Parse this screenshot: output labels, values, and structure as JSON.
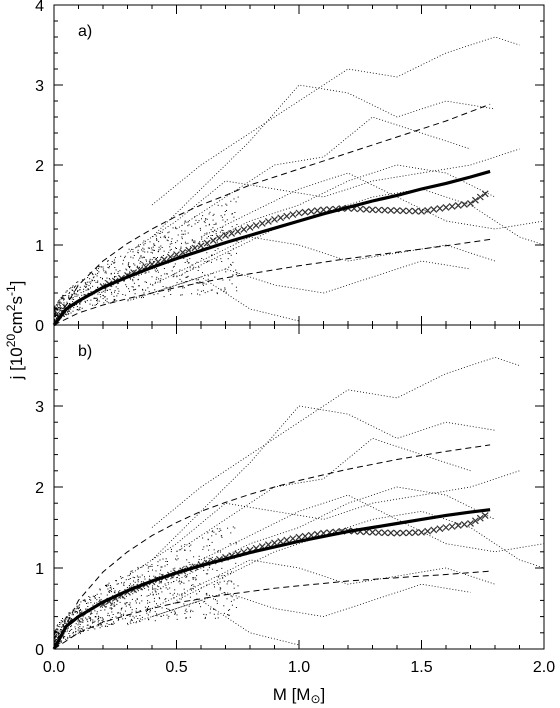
{
  "figure": {
    "ylabel": "j  [10",
    "ylabel_exp": "20",
    "ylabel_units": "cm",
    "ylabel_units_exp": "2",
    "ylabel_tail": "s",
    "ylabel_tail_exp": "-1",
    "ylabel_close": "]",
    "xlabel": "M  [M",
    "xlabel_symbol": "⊙",
    "xlabel_close": "]"
  },
  "chart_data": [
    {
      "type": "line",
      "panel_label": "a)",
      "xlim": [
        0,
        2.0
      ],
      "ylim": [
        0,
        4
      ],
      "xticks": [
        0.0,
        0.5,
        1.0,
        1.5,
        2.0
      ],
      "xtick_labels": [
        "0.0",
        "0.5",
        "1.0",
        "1.5",
        "2.0"
      ],
      "yticks": [
        0,
        1,
        2,
        3,
        4
      ],
      "ytick_labels": [
        "0",
        "1",
        "2",
        "3",
        "4"
      ],
      "show_xtick_labels": false,
      "fit_line": {
        "style": "solid-thick",
        "x": [
          0.0,
          0.05,
          0.1,
          0.2,
          0.3,
          0.4,
          0.5,
          0.6,
          0.7,
          0.8,
          0.9,
          1.0,
          1.1,
          1.2,
          1.3,
          1.4,
          1.5,
          1.6,
          1.7,
          1.78
        ],
        "y": [
          0.0,
          0.2,
          0.3,
          0.47,
          0.6,
          0.72,
          0.83,
          0.93,
          1.03,
          1.12,
          1.21,
          1.3,
          1.39,
          1.47,
          1.55,
          1.62,
          1.7,
          1.77,
          1.85,
          1.92
        ]
      },
      "upper_dashed": {
        "style": "dashed",
        "x": [
          0.0,
          0.1,
          0.2,
          0.3,
          0.4,
          0.5,
          0.6,
          0.7,
          0.8,
          0.9,
          1.0,
          1.2,
          1.4,
          1.6,
          1.78
        ],
        "y": [
          0.0,
          0.5,
          0.8,
          1.02,
          1.2,
          1.36,
          1.5,
          1.62,
          1.75,
          1.85,
          1.95,
          2.15,
          2.35,
          2.55,
          2.76
        ]
      },
      "lower_dashed": {
        "style": "dashed",
        "x": [
          0.0,
          0.1,
          0.2,
          0.3,
          0.4,
          0.5,
          0.6,
          0.7,
          0.8,
          0.9,
          1.0,
          1.2,
          1.4,
          1.6,
          1.78
        ],
        "y": [
          0.0,
          0.15,
          0.25,
          0.33,
          0.4,
          0.47,
          0.53,
          0.59,
          0.64,
          0.69,
          0.74,
          0.83,
          0.91,
          0.99,
          1.07
        ]
      },
      "binned_mean": {
        "style": "x-markers",
        "x": [
          0.2,
          0.3,
          0.4,
          0.5,
          0.6,
          0.7,
          0.8,
          0.9,
          1.0,
          1.1,
          1.2,
          1.3,
          1.4,
          1.5,
          1.6,
          1.7,
          1.78
        ],
        "y": [
          0.48,
          0.62,
          0.76,
          0.88,
          0.99,
          1.12,
          1.22,
          1.32,
          1.4,
          1.44,
          1.46,
          1.44,
          1.43,
          1.42,
          1.47,
          1.52,
          1.68
        ]
      },
      "tracks": [
        {
          "x": [
            0.4,
            0.6,
            0.8,
            1.0,
            1.2,
            1.4,
            1.6,
            1.8,
            1.9
          ],
          "y": [
            1.5,
            2.0,
            2.4,
            2.8,
            3.2,
            3.1,
            3.4,
            3.6,
            3.5
          ]
        },
        {
          "x": [
            0.4,
            0.6,
            0.8,
            1.0,
            1.2,
            1.4,
            1.6,
            1.8
          ],
          "y": [
            1.1,
            1.7,
            2.3,
            3.0,
            2.9,
            2.6,
            2.8,
            2.7
          ]
        },
        {
          "x": [
            0.5,
            0.7,
            0.9,
            1.1,
            1.3,
            1.5,
            1.7
          ],
          "y": [
            1.2,
            1.6,
            2.0,
            2.1,
            2.6,
            2.4,
            2.2
          ]
        },
        {
          "x": [
            0.3,
            0.5,
            0.7,
            0.9,
            1.1,
            1.3,
            1.5,
            1.7,
            1.9
          ],
          "y": [
            0.9,
            1.3,
            1.8,
            1.7,
            1.6,
            1.8,
            1.9,
            2.0,
            2.2
          ]
        },
        {
          "x": [
            0.4,
            0.6,
            0.8,
            1.0,
            1.2,
            1.4,
            1.6,
            1.8
          ],
          "y": [
            0.7,
            1.0,
            1.3,
            1.5,
            1.8,
            2.0,
            1.9,
            1.6
          ]
        },
        {
          "x": [
            0.5,
            0.7,
            0.9,
            1.1,
            1.3,
            1.5,
            1.7,
            1.9,
            2.0
          ],
          "y": [
            0.6,
            0.9,
            1.2,
            1.4,
            1.6,
            1.7,
            1.5,
            1.1,
            1.0
          ]
        },
        {
          "x": [
            0.4,
            0.6,
            0.8,
            1.0,
            1.2,
            1.4,
            1.6,
            1.8
          ],
          "y": [
            0.5,
            0.8,
            1.1,
            1.0,
            0.8,
            0.9,
            1.0,
            0.8
          ]
        },
        {
          "x": [
            0.3,
            0.5,
            0.7,
            0.9,
            1.1,
            1.3,
            1.5,
            1.7
          ],
          "y": [
            0.3,
            0.5,
            0.7,
            0.5,
            0.4,
            0.6,
            0.8,
            0.7
          ]
        },
        {
          "x": [
            0.4,
            0.6,
            0.8,
            1.0
          ],
          "y": [
            0.4,
            0.6,
            0.2,
            0.05
          ]
        },
        {
          "x": [
            0.6,
            0.8,
            1.0,
            1.2,
            1.4,
            1.6,
            1.8,
            2.0
          ],
          "y": [
            1.1,
            1.4,
            1.7,
            1.9,
            1.6,
            1.3,
            1.2,
            1.3
          ]
        }
      ]
    },
    {
      "type": "line",
      "panel_label": "b)",
      "xlim": [
        0,
        2.0
      ],
      "ylim": [
        0,
        4
      ],
      "xticks": [
        0.0,
        0.5,
        1.0,
        1.5,
        2.0
      ],
      "xtick_labels": [
        "0.0",
        "0.5",
        "1.0",
        "1.5",
        "2.0"
      ],
      "yticks": [
        0,
        1,
        2,
        3
      ],
      "ytick_labels": [
        "0",
        "1",
        "2",
        "3"
      ],
      "show_xtick_labels": true,
      "fit_line": {
        "style": "solid-thick",
        "x": [
          0.0,
          0.05,
          0.1,
          0.2,
          0.3,
          0.4,
          0.5,
          0.6,
          0.7,
          0.8,
          0.9,
          1.0,
          1.1,
          1.2,
          1.3,
          1.4,
          1.5,
          1.6,
          1.7,
          1.78
        ],
        "y": [
          0.0,
          0.28,
          0.4,
          0.58,
          0.72,
          0.84,
          0.94,
          1.03,
          1.11,
          1.19,
          1.26,
          1.33,
          1.39,
          1.45,
          1.5,
          1.55,
          1.6,
          1.65,
          1.69,
          1.72
        ]
      },
      "upper_dashed": {
        "style": "dashed",
        "x": [
          0.0,
          0.1,
          0.2,
          0.3,
          0.4,
          0.5,
          0.6,
          0.7,
          0.8,
          0.9,
          1.0,
          1.2,
          1.4,
          1.6,
          1.78
        ],
        "y": [
          0.0,
          0.6,
          0.95,
          1.2,
          1.4,
          1.56,
          1.7,
          1.81,
          1.91,
          2.0,
          2.08,
          2.22,
          2.34,
          2.44,
          2.52
        ]
      },
      "lower_dashed": {
        "style": "dashed",
        "x": [
          0.0,
          0.1,
          0.2,
          0.3,
          0.4,
          0.5,
          0.6,
          0.7,
          0.8,
          0.9,
          1.0,
          1.2,
          1.4,
          1.6,
          1.78
        ],
        "y": [
          0.0,
          0.2,
          0.33,
          0.42,
          0.5,
          0.57,
          0.62,
          0.67,
          0.71,
          0.75,
          0.78,
          0.84,
          0.88,
          0.92,
          0.96
        ]
      },
      "binned_mean": {
        "style": "x-markers",
        "x": [
          0.2,
          0.3,
          0.4,
          0.5,
          0.6,
          0.7,
          0.8,
          0.9,
          1.0,
          1.1,
          1.2,
          1.3,
          1.4,
          1.5,
          1.6,
          1.7,
          1.78
        ],
        "y": [
          0.55,
          0.7,
          0.83,
          0.94,
          1.04,
          1.13,
          1.22,
          1.31,
          1.38,
          1.43,
          1.46,
          1.44,
          1.43,
          1.44,
          1.5,
          1.55,
          1.68
        ]
      },
      "tracks": [
        {
          "x": [
            0.4,
            0.6,
            0.8,
            1.0,
            1.2,
            1.4,
            1.6,
            1.8,
            1.9
          ],
          "y": [
            1.5,
            2.0,
            2.4,
            2.8,
            3.2,
            3.1,
            3.4,
            3.6,
            3.5
          ]
        },
        {
          "x": [
            0.4,
            0.6,
            0.8,
            1.0,
            1.2,
            1.4,
            1.6,
            1.8
          ],
          "y": [
            1.1,
            1.7,
            2.3,
            3.0,
            2.9,
            2.6,
            2.8,
            2.7
          ]
        },
        {
          "x": [
            0.5,
            0.7,
            0.9,
            1.1,
            1.3,
            1.5,
            1.7
          ],
          "y": [
            1.2,
            1.6,
            2.0,
            2.1,
            2.6,
            2.4,
            2.2
          ]
        },
        {
          "x": [
            0.3,
            0.5,
            0.7,
            0.9,
            1.1,
            1.3,
            1.5,
            1.7,
            1.9
          ],
          "y": [
            0.9,
            1.3,
            1.8,
            1.7,
            1.6,
            1.8,
            1.9,
            2.0,
            2.2
          ]
        },
        {
          "x": [
            0.4,
            0.6,
            0.8,
            1.0,
            1.2,
            1.4,
            1.6,
            1.8
          ],
          "y": [
            0.7,
            1.0,
            1.3,
            1.5,
            1.8,
            2.0,
            1.9,
            1.6
          ]
        },
        {
          "x": [
            0.5,
            0.7,
            0.9,
            1.1,
            1.3,
            1.5,
            1.7,
            1.9,
            2.0
          ],
          "y": [
            0.6,
            0.9,
            1.2,
            1.4,
            1.6,
            1.7,
            1.5,
            1.1,
            1.0
          ]
        },
        {
          "x": [
            0.4,
            0.6,
            0.8,
            1.0,
            1.2,
            1.4,
            1.6,
            1.8
          ],
          "y": [
            0.5,
            0.8,
            1.1,
            1.0,
            0.8,
            0.9,
            1.0,
            0.8
          ]
        },
        {
          "x": [
            0.3,
            0.5,
            0.7,
            0.9,
            1.1,
            1.3,
            1.5,
            1.7
          ],
          "y": [
            0.3,
            0.5,
            0.7,
            0.5,
            0.4,
            0.6,
            0.8,
            0.7
          ]
        },
        {
          "x": [
            0.4,
            0.6,
            0.8,
            1.0
          ],
          "y": [
            0.4,
            0.6,
            0.2,
            0.05
          ]
        },
        {
          "x": [
            0.6,
            0.8,
            1.0,
            1.2,
            1.4,
            1.6,
            1.8,
            2.0
          ],
          "y": [
            1.1,
            1.4,
            1.7,
            1.9,
            1.6,
            1.3,
            1.2,
            1.3
          ]
        }
      ]
    }
  ]
}
